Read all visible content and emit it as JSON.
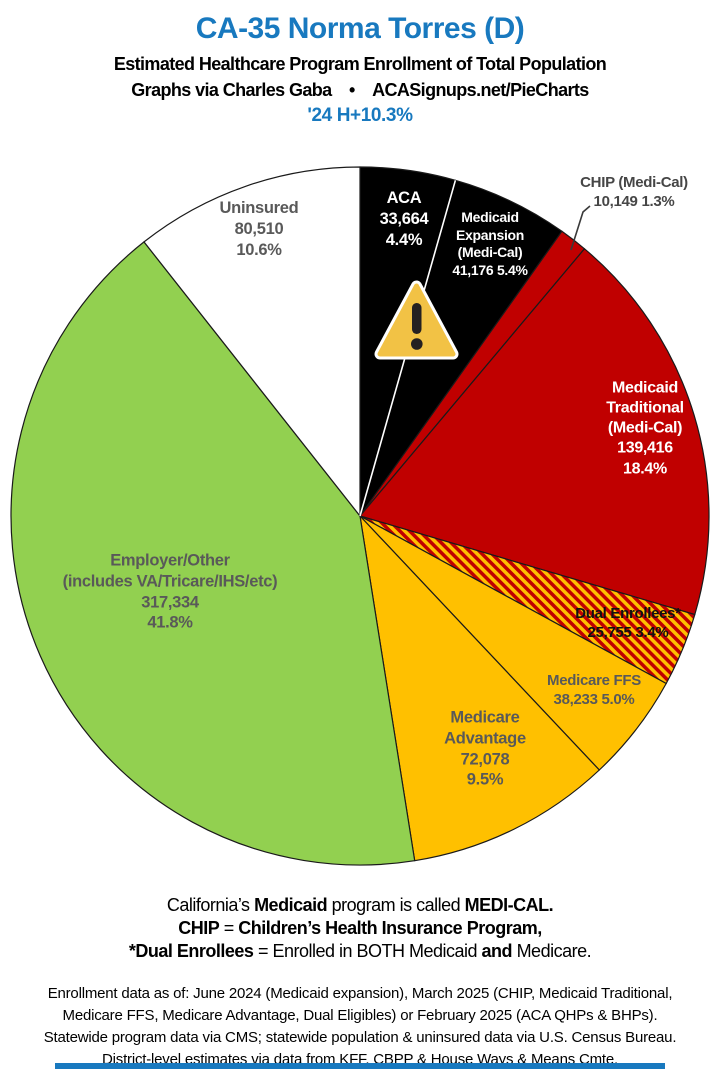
{
  "header": {
    "title": "CA-35 Norma Torres (D)",
    "subtitle1": "Estimated Healthcare Program Enrollment of Total Population",
    "subtitle2": "Graphs via Charles Gaba • ACASignups.net/PieCharts",
    "subtitle3": "'24 H+10.3%",
    "title_color": "#1879BF"
  },
  "chart_data": {
    "type": "pie",
    "direction": "clockwise",
    "start_angle_deg": 0,
    "divider_color": "#FFFFFF",
    "hatch_colors": [
      "#C00000",
      "#FFC000"
    ],
    "slices": [
      {
        "id": "aca",
        "name": "ACA",
        "value": 33664,
        "pct": 4.4,
        "color": "#000000",
        "label_lines": [
          "ACA",
          "33,664",
          "4.4%"
        ],
        "label_color": "#FFFFFF"
      },
      {
        "id": "expansion",
        "name": "Medicaid Expansion (Medi-Cal)",
        "value": 41176,
        "pct": 5.4,
        "color": "#000000",
        "label_lines": [
          "Medicaid",
          "Expansion",
          "(Medi-Cal)",
          "41,176 5.4%"
        ],
        "label_color": "#FFFFFF"
      },
      {
        "id": "chip",
        "name": "CHIP (Medi-Cal)",
        "value": 10149,
        "pct": 1.3,
        "color": "#C00000",
        "label_lines": [
          "CHIP (Medi-Cal)",
          "10,149 1.3%"
        ],
        "label_color": "#464646"
      },
      {
        "id": "traditional",
        "name": "Medicaid Traditional (Medi-Cal)",
        "value": 139416,
        "pct": 18.4,
        "color": "#C00000",
        "label_lines": [
          "Medicaid",
          "Traditional",
          "(Medi-Cal)",
          "139,416",
          "18.4%"
        ],
        "label_color": "#FFFFFF"
      },
      {
        "id": "dual",
        "name": "Dual Enrollees*",
        "value": 25755,
        "pct": 3.4,
        "color": "hatch",
        "label_lines": [
          "Dual Enrollees*",
          "25,755 3.4%"
        ],
        "label_color": "#111111"
      },
      {
        "id": "ffs",
        "name": "Medicare FFS",
        "value": 38233,
        "pct": 5.0,
        "color": "#FFC000",
        "label_lines": [
          "Medicare FFS",
          "38,233 5.0%"
        ],
        "label_color": "#595959"
      },
      {
        "id": "advantage",
        "name": "Medicare Advantage",
        "value": 72078,
        "pct": 9.5,
        "color": "#FFC000",
        "label_lines": [
          "Medicare",
          "Advantage",
          "72,078",
          "9.5%"
        ],
        "label_color": "#595959"
      },
      {
        "id": "employer",
        "name": "Employer/Other (includes VA/Tricare/IHS/etc)",
        "value": 317334,
        "pct": 41.8,
        "color": "#92D050",
        "label_lines": [
          "Employer/Other",
          "(includes VA/Tricare/IHS/etc)",
          "317,334",
          "41.8%"
        ],
        "label_color": "#595959"
      },
      {
        "id": "uninsured",
        "name": "Uninsured",
        "value": 80510,
        "pct": 10.6,
        "color": "#FFFFFF",
        "label_lines": [
          "Uninsured",
          "80,510",
          "10.6%"
        ],
        "label_color": "#595959"
      }
    ]
  },
  "warning_icon": {
    "fill": "#F2C245",
    "mark_color": "#242021",
    "border_color": "#FFFFFF"
  },
  "notes": {
    "lines": [
      [
        {
          "t": "California’s ",
          "b": false
        },
        {
          "t": "Medicaid",
          "b": true
        },
        {
          "t": " program is called ",
          "b": false
        },
        {
          "t": "MEDI-CAL.",
          "b": true
        }
      ],
      [
        {
          "t": "CHIP",
          "b": true
        },
        {
          "t": " = ",
          "b": false
        },
        {
          "t": "Children’s Health Insurance Program,",
          "b": true
        }
      ],
      [
        {
          "t": "*Dual Enrollees",
          "b": true
        },
        {
          "t": " = Enrolled in BOTH Medicaid ",
          "b": false
        },
        {
          "t": "and",
          "b": true
        },
        {
          "t": " Medicare.",
          "b": false
        }
      ]
    ]
  },
  "footer": {
    "lines": [
      "Enrollment data as of: June 2024 (Medicaid expansion), March 2025 (CHIP, Medicaid Traditional,",
      "Medicare FFS, Medicare Advantage, Dual Eligibles) or February 2025 (ACA QHPs & BHPs).",
      "Statewide program data via CMS; statewide population & uninsured data via U.S. Census Bureau.",
      "District-level estimates via data from KFF, CBPP & House Ways & Means Cmte."
    ]
  },
  "bottom_bar": {
    "color": "#1879BF"
  }
}
